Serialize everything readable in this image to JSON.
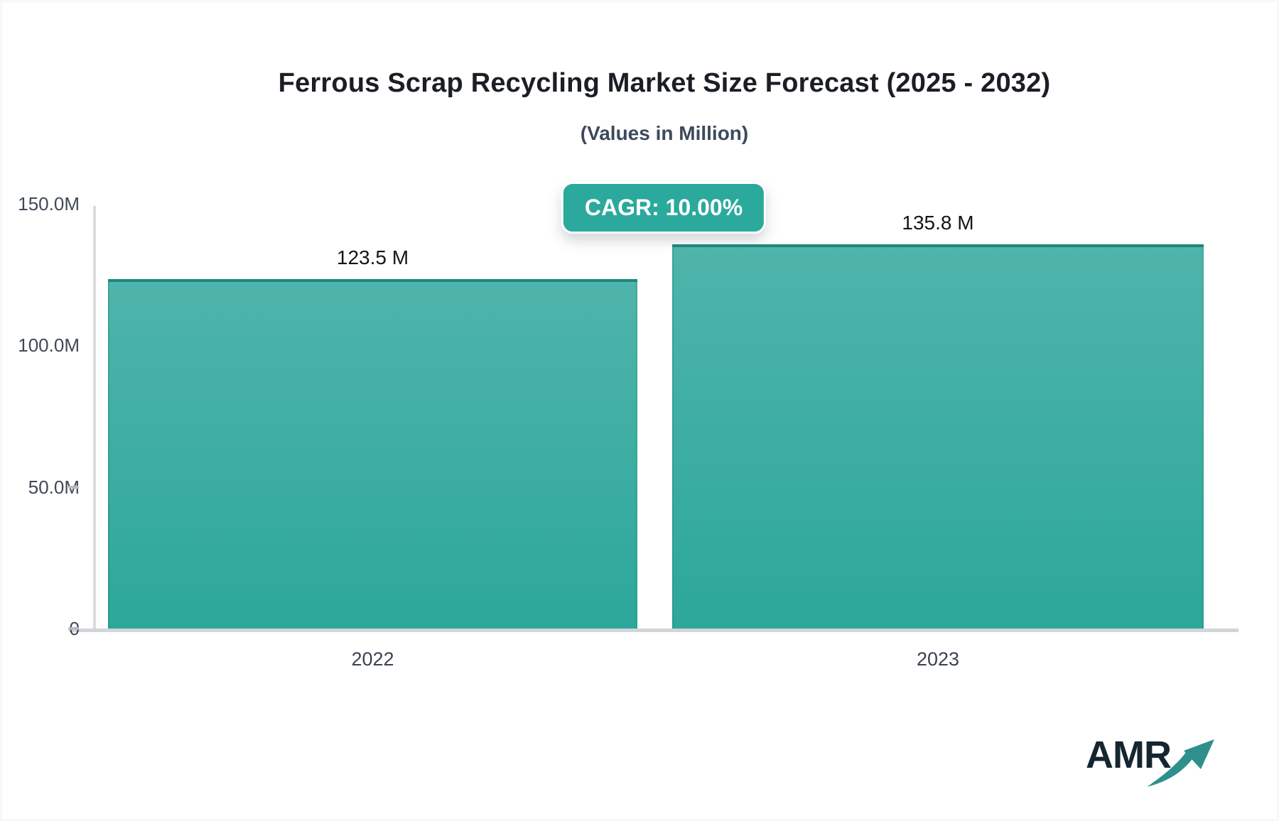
{
  "header": {
    "title": "Ferrous Scrap Recycling Market Size Forecast (2025 - 2032)",
    "subtitle": "(Values in Million)"
  },
  "badge": {
    "label": "CAGR: 10.00%",
    "background": "#2aa99c",
    "text_color": "#ffffff"
  },
  "chart_data": {
    "type": "bar",
    "title": "Ferrous Scrap Recycling Market Size Forecast (2025 - 2032)",
    "subtitle": "(Values in Million)",
    "unit": "Million",
    "categories": [
      "2022",
      "2023"
    ],
    "values": [
      123.5,
      135.8
    ],
    "value_labels": [
      "123.5 M",
      "135.8 M"
    ],
    "ylim": [
      0,
      150
    ],
    "yticks": [
      {
        "value": 150,
        "label": "150.0M"
      },
      {
        "value": 100,
        "label": "100.0M"
      },
      {
        "value": 50,
        "label": "50.0M"
      },
      {
        "value": 0,
        "label": "0"
      }
    ],
    "grid": false,
    "legend": "none",
    "bar_color_top": "#4fb4ab",
    "bar_color_bottom": "#2ca79a",
    "bar_border_color": "#1e867c",
    "axis_color": "#d9dce0",
    "tick_label_color": "#3f4a58"
  },
  "logo": {
    "text": "AMR",
    "text_color": "#152630",
    "arrow_color": "#2f8f8c"
  }
}
